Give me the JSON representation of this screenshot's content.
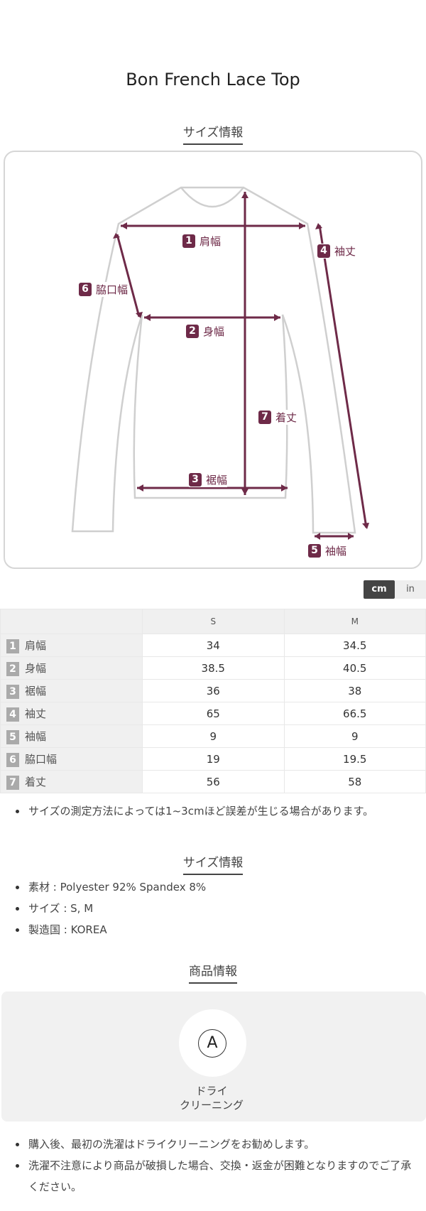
{
  "product_title": "Bon French Lace Top",
  "size_section": {
    "heading": "サイズ情報",
    "labels": [
      {
        "num": "1",
        "name": "肩幅"
      },
      {
        "num": "2",
        "name": "身幅"
      },
      {
        "num": "3",
        "name": "裾幅"
      },
      {
        "num": "4",
        "name": "袖丈"
      },
      {
        "num": "5",
        "name": "袖幅"
      },
      {
        "num": "6",
        "name": "脇口幅"
      },
      {
        "num": "7",
        "name": "着丈"
      }
    ],
    "accent_color": "#6e2a48"
  },
  "units": {
    "cm": "cm",
    "in": "in",
    "selected": "cm"
  },
  "table": {
    "headers": [
      "",
      "S",
      "M"
    ],
    "rows": [
      {
        "num": "1",
        "label": "肩幅",
        "values": [
          "34",
          "34.5"
        ]
      },
      {
        "num": "2",
        "label": "身幅",
        "values": [
          "38.5",
          "40.5"
        ]
      },
      {
        "num": "3",
        "label": "裾幅",
        "values": [
          "36",
          "38"
        ]
      },
      {
        "num": "4",
        "label": "袖丈",
        "values": [
          "65",
          "66.5"
        ]
      },
      {
        "num": "5",
        "label": "袖幅",
        "values": [
          "9",
          "9"
        ]
      },
      {
        "num": "6",
        "label": "脇口幅",
        "values": [
          "19",
          "19.5"
        ]
      },
      {
        "num": "7",
        "label": "着丈",
        "values": [
          "56",
          "58"
        ]
      }
    ]
  },
  "size_note": "サイズの測定方法によっては1~3cmほど誤差が生じる場合があります。",
  "info_section": {
    "heading": "サイズ情報",
    "items": [
      "素材 : Polyester 92% Spandex 8%",
      "サイズ : S, M",
      "製造国 : KOREA"
    ]
  },
  "product_info": {
    "heading": "商品情報",
    "care_icon": "dry-clean-A",
    "care_symbol": "A",
    "care_line1": "ドライ",
    "care_line2": "クリーニング",
    "notes": [
      "購入後、最初の洗濯はドライクリーニングをお勧めします。",
      "洗濯不注意により商品が破損した場合、交換・返金が困難となりますのでご了承ください。"
    ]
  }
}
